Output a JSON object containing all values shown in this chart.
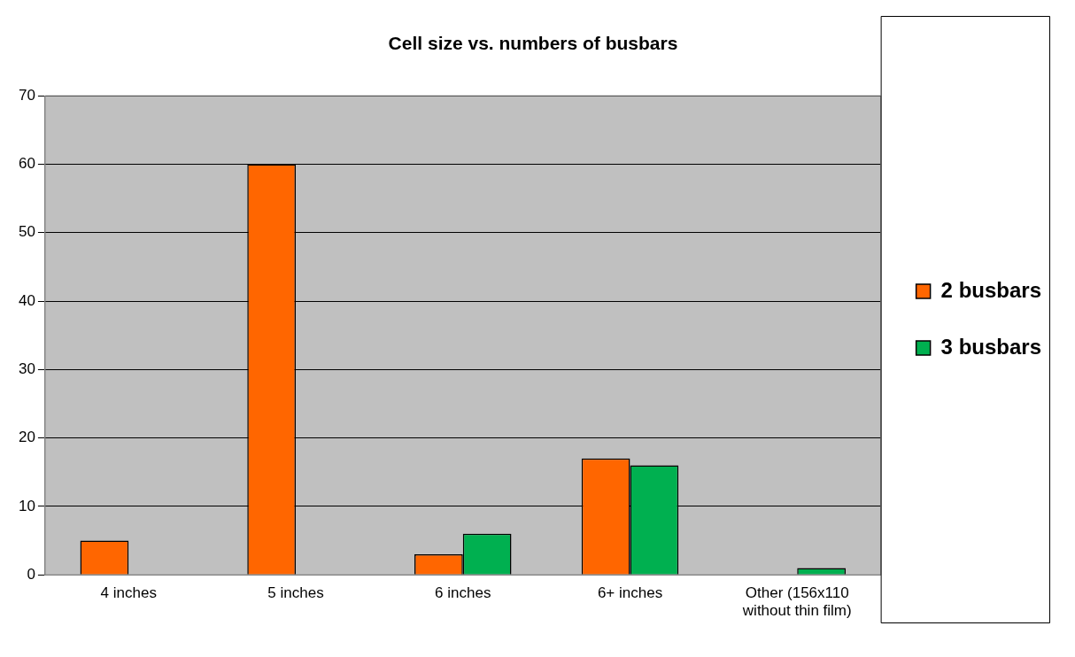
{
  "chart_data": {
    "type": "bar",
    "title": "Cell size vs. numbers of busbars",
    "categories": [
      "4 inches",
      "5 inches",
      "6 inches",
      "6+ inches",
      "Other (156x110 without thin film)"
    ],
    "series": [
      {
        "name": "2 busbars",
        "color": "#ff6600",
        "values": [
          5,
          60,
          3,
          17,
          null
        ]
      },
      {
        "name": "3 busbars",
        "color": "#00b050",
        "values": [
          null,
          null,
          6,
          16,
          1
        ]
      }
    ],
    "ylim": [
      0,
      70
    ],
    "yticks": [
      0,
      10,
      20,
      30,
      40,
      50,
      60,
      70
    ],
    "grid": "y",
    "legend": "right"
  }
}
